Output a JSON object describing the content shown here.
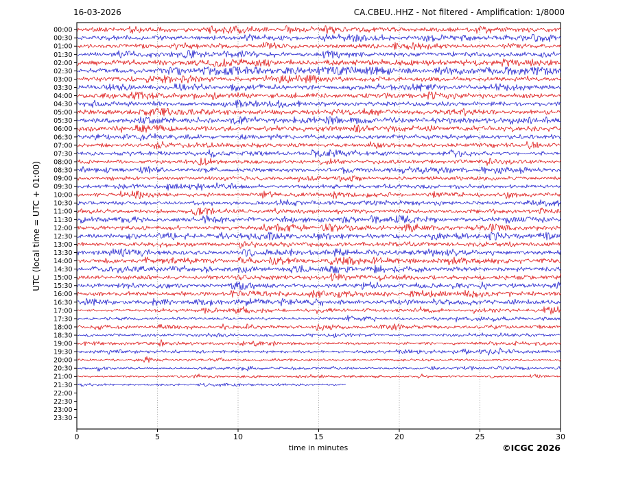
{
  "chart_data": {
    "type": "line",
    "subtype": "helicorder-dayplot",
    "date": "16-03-2026",
    "title": "CA.CBEU..HHZ - Not filtered - Amplification: 1/8000",
    "xlabel": "time in minutes",
    "ylabel": "UTC (local time = UTC + 01:00)",
    "copyright": "©ICGC 2026",
    "xlim": [
      0,
      30
    ],
    "xticks": [
      0,
      5,
      10,
      15,
      20,
      25,
      30
    ],
    "grid": "vertical dotted gridlines at 5-minute intervals",
    "legend": "none",
    "row_interval_minutes": 30,
    "colors": {
      "red": "#dd1111",
      "blue": "#1c1ccc",
      "grid": "#8a8a8a",
      "frame": "#000000"
    },
    "rows": [
      {
        "time": "00:00",
        "color": "red",
        "amplitude": 2.2,
        "data_end_minute": 30
      },
      {
        "time": "00:30",
        "color": "blue",
        "amplitude": 2.2,
        "data_end_minute": 30
      },
      {
        "time": "01:00",
        "color": "red",
        "amplitude": 2.0,
        "data_end_minute": 30
      },
      {
        "time": "01:30",
        "color": "blue",
        "amplitude": 2.3,
        "data_end_minute": 30
      },
      {
        "time": "02:00",
        "color": "red",
        "amplitude": 2.8,
        "data_end_minute": 30
      },
      {
        "time": "02:30",
        "color": "blue",
        "amplitude": 2.8,
        "data_end_minute": 30
      },
      {
        "time": "03:00",
        "color": "red",
        "amplitude": 2.2,
        "data_end_minute": 30
      },
      {
        "time": "03:30",
        "color": "blue",
        "amplitude": 2.4,
        "data_end_minute": 30
      },
      {
        "time": "04:00",
        "color": "red",
        "amplitude": 2.2,
        "data_end_minute": 30
      },
      {
        "time": "04:30",
        "color": "blue",
        "amplitude": 2.2,
        "data_end_minute": 30
      },
      {
        "time": "05:00",
        "color": "red",
        "amplitude": 2.4,
        "data_end_minute": 30
      },
      {
        "time": "05:30",
        "color": "blue",
        "amplitude": 2.6,
        "data_end_minute": 30
      },
      {
        "time": "06:00",
        "color": "red",
        "amplitude": 2.6,
        "data_end_minute": 30
      },
      {
        "time": "06:30",
        "color": "blue",
        "amplitude": 2.4,
        "data_end_minute": 30
      },
      {
        "time": "07:00",
        "color": "red",
        "amplitude": 2.0,
        "data_end_minute": 30
      },
      {
        "time": "07:30",
        "color": "blue",
        "amplitude": 2.0,
        "data_end_minute": 30
      },
      {
        "time": "08:00",
        "color": "red",
        "amplitude": 1.9,
        "data_end_minute": 30
      },
      {
        "time": "08:30",
        "color": "blue",
        "amplitude": 1.9,
        "data_end_minute": 30
      },
      {
        "time": "09:00",
        "color": "red",
        "amplitude": 1.9,
        "data_end_minute": 30
      },
      {
        "time": "09:30",
        "color": "blue",
        "amplitude": 2.0,
        "data_end_minute": 30
      },
      {
        "time": "10:00",
        "color": "red",
        "amplitude": 1.9,
        "data_end_minute": 30
      },
      {
        "time": "10:30",
        "color": "blue",
        "amplitude": 1.9,
        "data_end_minute": 30
      },
      {
        "time": "11:00",
        "color": "red",
        "amplitude": 1.9,
        "data_end_minute": 30
      },
      {
        "time": "11:30",
        "color": "blue",
        "amplitude": 2.2,
        "data_end_minute": 30
      },
      {
        "time": "12:00",
        "color": "red",
        "amplitude": 2.2,
        "data_end_minute": 30
      },
      {
        "time": "12:30",
        "color": "blue",
        "amplitude": 2.2,
        "data_end_minute": 30
      },
      {
        "time": "13:00",
        "color": "red",
        "amplitude": 2.2,
        "data_end_minute": 30
      },
      {
        "time": "13:30",
        "color": "blue",
        "amplitude": 2.4,
        "data_end_minute": 30
      },
      {
        "time": "14:00",
        "color": "red",
        "amplitude": 2.4,
        "data_end_minute": 30
      },
      {
        "time": "14:30",
        "color": "blue",
        "amplitude": 2.2,
        "data_end_minute": 30
      },
      {
        "time": "15:00",
        "color": "red",
        "amplitude": 2.2,
        "data_end_minute": 30
      },
      {
        "time": "15:30",
        "color": "blue",
        "amplitude": 2.0,
        "data_end_minute": 30
      },
      {
        "time": "16:00",
        "color": "red",
        "amplitude": 2.2,
        "data_end_minute": 30
      },
      {
        "time": "16:30",
        "color": "blue",
        "amplitude": 2.0,
        "data_end_minute": 30
      },
      {
        "time": "17:00",
        "color": "red",
        "amplitude": 1.5,
        "data_end_minute": 30
      },
      {
        "time": "17:30",
        "color": "blue",
        "amplitude": 1.4,
        "data_end_minute": 30
      },
      {
        "time": "18:00",
        "color": "red",
        "amplitude": 1.5,
        "data_end_minute": 30
      },
      {
        "time": "18:30",
        "color": "blue",
        "amplitude": 1.4,
        "data_end_minute": 30
      },
      {
        "time": "19:00",
        "color": "red",
        "amplitude": 1.4,
        "data_end_minute": 30
      },
      {
        "time": "19:30",
        "color": "blue",
        "amplitude": 1.4,
        "data_end_minute": 30
      },
      {
        "time": "20:00",
        "color": "red",
        "amplitude": 1.1,
        "data_end_minute": 30
      },
      {
        "time": "20:30",
        "color": "blue",
        "amplitude": 1.0,
        "data_end_minute": 30
      },
      {
        "time": "21:00",
        "color": "red",
        "amplitude": 0.9,
        "data_end_minute": 30
      },
      {
        "time": "21:30",
        "color": "blue",
        "amplitude": 1.0,
        "data_end_minute": 16.7
      },
      {
        "time": "22:00",
        "color": "red",
        "amplitude": 0,
        "data_end_minute": 0
      },
      {
        "time": "22:30",
        "color": "blue",
        "amplitude": 0,
        "data_end_minute": 0
      },
      {
        "time": "23:00",
        "color": "red",
        "amplitude": 0,
        "data_end_minute": 0
      },
      {
        "time": "23:30",
        "color": "blue",
        "amplitude": 0,
        "data_end_minute": 0
      }
    ]
  }
}
